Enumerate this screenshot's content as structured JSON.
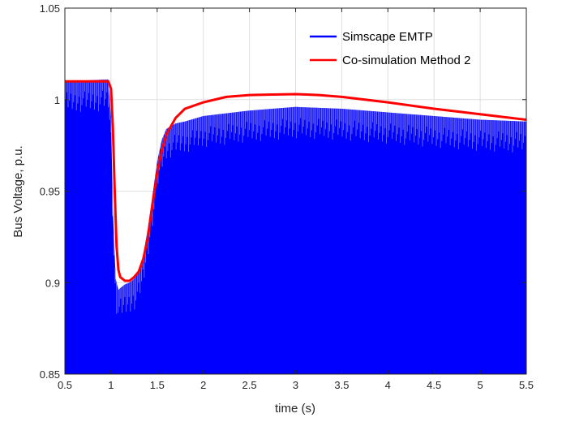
{
  "chart_data": {
    "type": "line",
    "xlabel": "time (s)",
    "ylabel": "Bus Voltage, p.u.",
    "xlim": [
      0.5,
      5.5
    ],
    "ylim": [
      0.85,
      1.05
    ],
    "xticks": [
      0.5,
      1,
      1.5,
      2,
      2.5,
      3,
      3.5,
      4,
      4.5,
      5,
      5.5
    ],
    "yticks": [
      0.85,
      0.9,
      0.95,
      1,
      1.05
    ],
    "xtick_labels": [
      "0.5",
      "1",
      "1.5",
      "2",
      "2.5",
      "3",
      "3.5",
      "4",
      "4.5",
      "5",
      "5.5"
    ],
    "ytick_labels": [
      "0.85",
      "0.9",
      "0.95",
      "1",
      "1.05"
    ],
    "grid": true,
    "legend_position": "top-right",
    "series": [
      {
        "name": "Simscape EMTP",
        "color": "#0000ff",
        "style": "filled-oscillation",
        "x": [
          0.5,
          0.97,
          1.0,
          1.02,
          1.05,
          1.08,
          1.1,
          1.15,
          1.2,
          1.25,
          1.3,
          1.35,
          1.4,
          1.45,
          1.5,
          1.55,
          1.6,
          1.7,
          1.8,
          2.0,
          2.5,
          3.0,
          3.5,
          4.0,
          4.5,
          5.0,
          5.5
        ],
        "values": [
          1.01,
          1.011,
          0.99,
          0.94,
          0.902,
          0.896,
          0.897,
          0.899,
          0.9,
          0.902,
          0.906,
          0.915,
          0.93,
          0.948,
          0.966,
          0.978,
          0.984,
          0.987,
          0.988,
          0.991,
          0.994,
          0.996,
          0.995,
          0.993,
          0.991,
          0.989,
          0.988
        ]
      },
      {
        "name": "Co-simulation Method 2",
        "color": "#ff0000",
        "x": [
          0.5,
          0.97,
          1.0,
          1.02,
          1.04,
          1.06,
          1.08,
          1.1,
          1.15,
          1.2,
          1.25,
          1.3,
          1.35,
          1.4,
          1.45,
          1.5,
          1.55,
          1.6,
          1.7,
          1.8,
          2.0,
          2.25,
          2.5,
          2.75,
          3.0,
          3.25,
          3.5,
          4.0,
          4.5,
          5.0,
          5.5
        ],
        "values": [
          1.01,
          1.01,
          1.006,
          0.985,
          0.95,
          0.92,
          0.907,
          0.903,
          0.901,
          0.901,
          0.903,
          0.906,
          0.913,
          0.925,
          0.943,
          0.96,
          0.972,
          0.981,
          0.99,
          0.995,
          0.9985,
          1.0015,
          1.0025,
          1.0028,
          1.003,
          1.0025,
          1.0015,
          0.9985,
          0.995,
          0.992,
          0.989
        ]
      }
    ]
  }
}
